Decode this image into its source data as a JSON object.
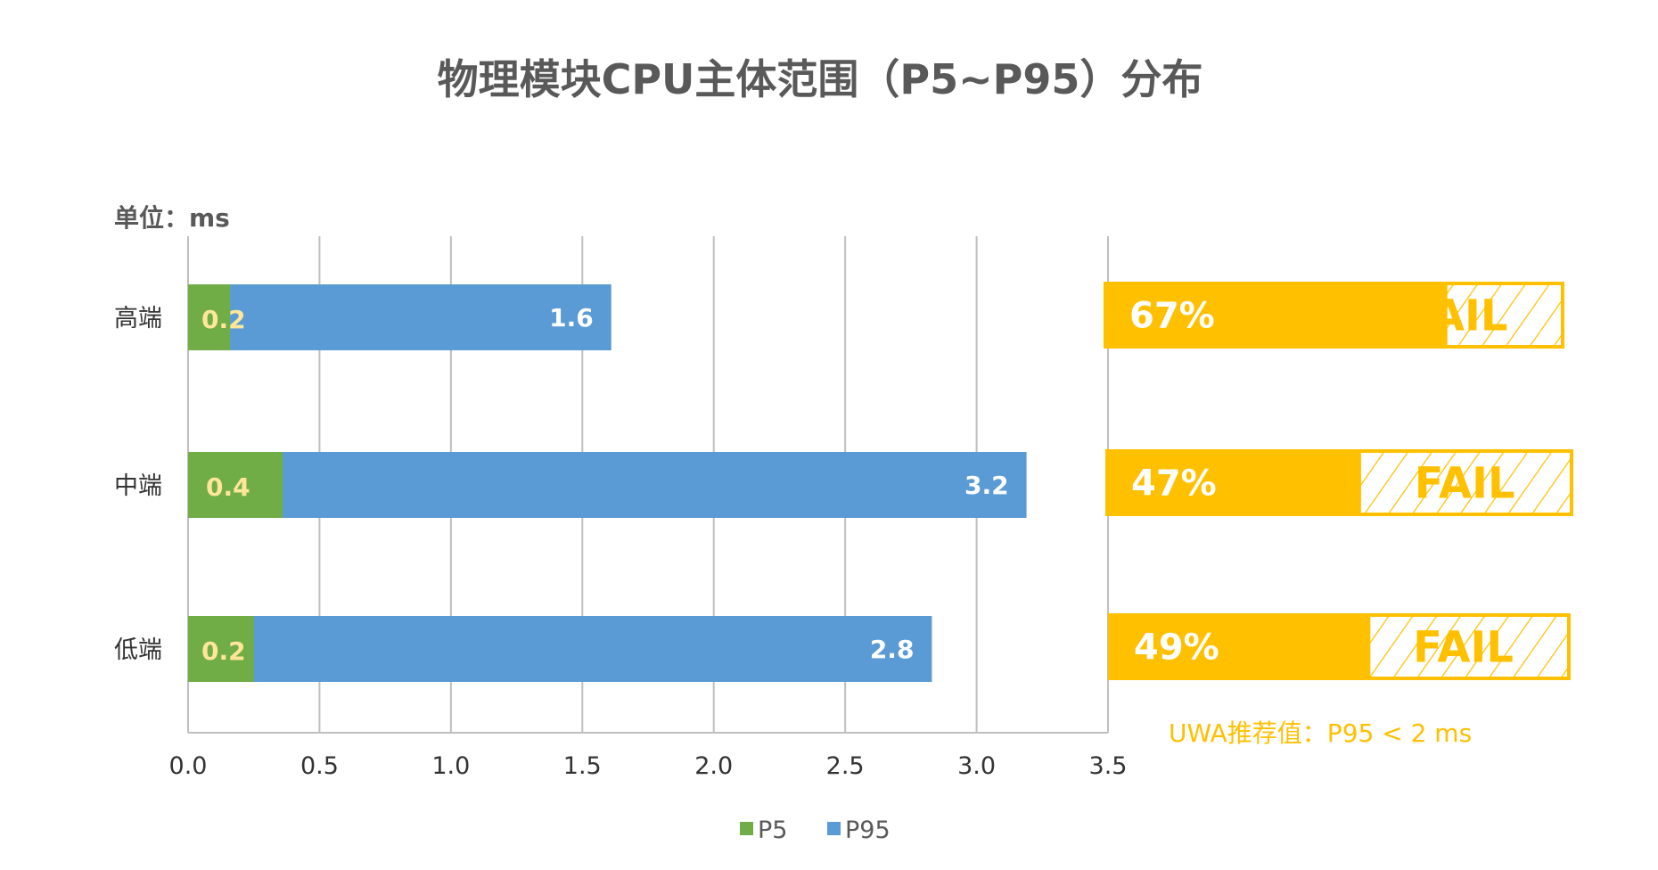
{
  "chart_data": {
    "type": "bar",
    "orientation": "horizontal",
    "title": "物理模块CPU主体范围（P5~P95）分布",
    "unit_label": "单位：ms",
    "categories": [
      "高端",
      "中端",
      "低端"
    ],
    "series": [
      {
        "name": "P5",
        "color": "#70AD47",
        "values": [
          0.16,
          0.36,
          0.25
        ],
        "labels": [
          "0.2",
          "0.4",
          "0.2"
        ]
      },
      {
        "name": "P95",
        "color": "#5B9BD5",
        "values": [
          1.61,
          3.19,
          2.83
        ],
        "labels": [
          "1.6",
          "3.2",
          "2.8"
        ]
      }
    ],
    "xlim": [
      0,
      3.5
    ],
    "xticks": [
      "0.0",
      "0.5",
      "1.0",
      "1.5",
      "2.0",
      "2.5",
      "3.0",
      "3.5"
    ],
    "grid": true,
    "legend": "bottom",
    "pass_rates": [
      {
        "category": "高端",
        "percent": 67,
        "label": "67%",
        "status": "FAIL"
      },
      {
        "category": "中端",
        "percent": 47,
        "label": "47%",
        "status": "FAIL"
      },
      {
        "category": "低端",
        "percent": 49,
        "label": "49%",
        "status": "FAIL"
      }
    ],
    "note": "UWA推荐值：P95 < 2 ms",
    "colors": {
      "accent": "#FFC000",
      "p5_label": "#FFE699",
      "p95_label": "#FFFFFF",
      "title": "#595959"
    }
  }
}
